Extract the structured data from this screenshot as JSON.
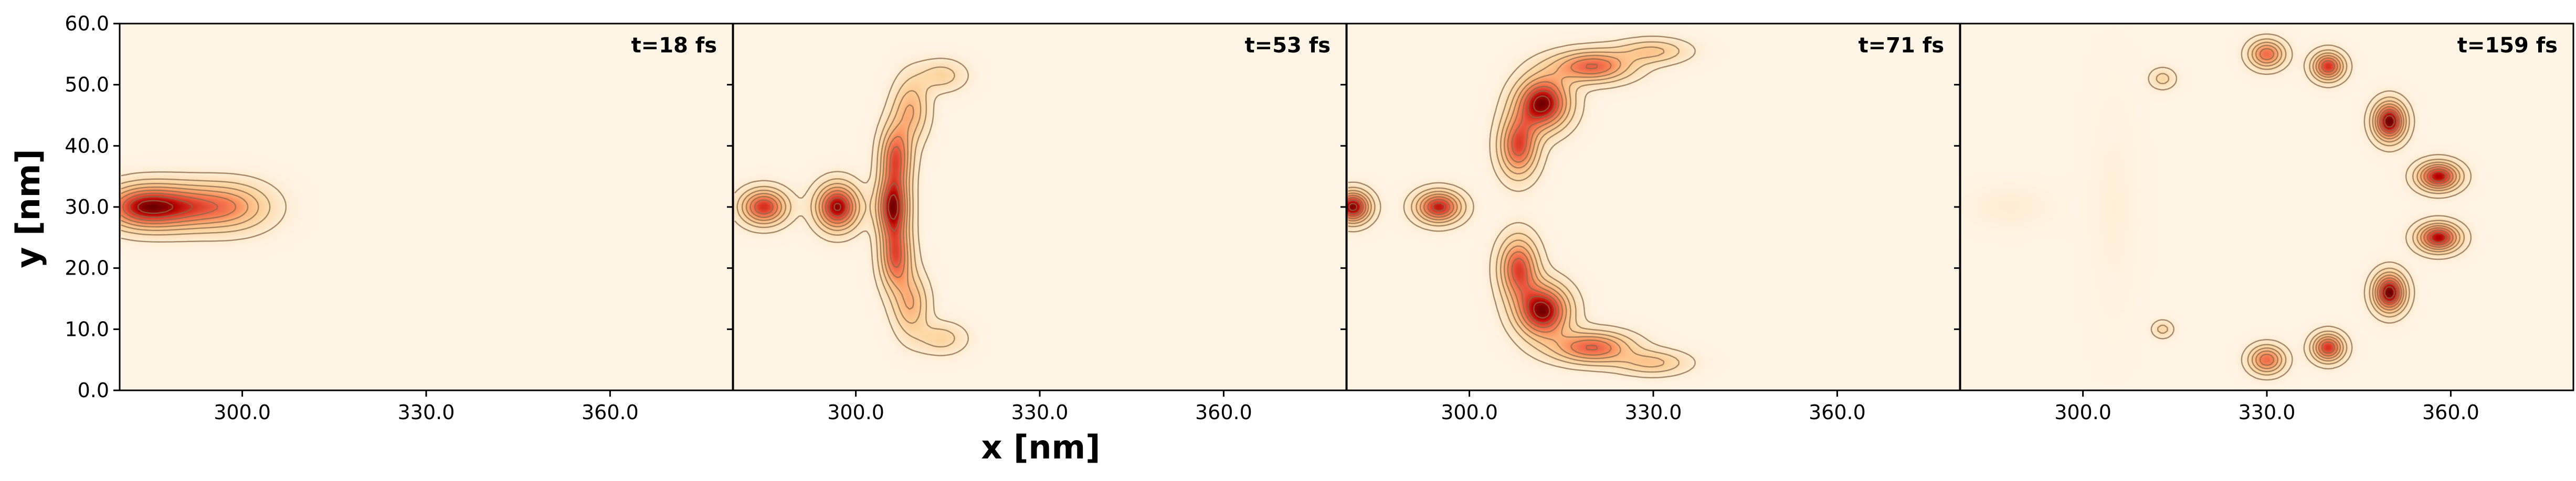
{
  "chart_data": {
    "type": "heatmap",
    "colormap": "OrRd",
    "background_color": "#fff5e6",
    "xlabel": "x [nm]",
    "ylabel": "y [nm]",
    "xlim": [
      280,
      380
    ],
    "ylim": [
      0,
      60
    ],
    "x_ticks": [
      "300.0",
      "330.0",
      "360.0"
    ],
    "x_tick_values": [
      300,
      330,
      360
    ],
    "y_ticks": [
      "0.0",
      "10.0",
      "20.0",
      "30.0",
      "40.0",
      "50.0",
      "60.0"
    ],
    "y_tick_values": [
      0,
      10,
      20,
      30,
      40,
      50,
      60
    ],
    "panels": [
      {
        "time_label": "t=18 fs",
        "blobs": [
          {
            "x": 289,
            "y": 30,
            "sx": 6.5,
            "sy": 2.6,
            "amp": 1.0
          },
          {
            "x": 283,
            "y": 30,
            "sx": 4.0,
            "sy": 2.4,
            "amp": 0.6
          },
          {
            "x": 299,
            "y": 30,
            "sx": 4.5,
            "sy": 2.8,
            "amp": 0.45
          }
        ]
      },
      {
        "time_label": "t=53 fs",
        "blobs": [
          {
            "x": 285,
            "y": 30,
            "sx": 2.6,
            "sy": 2.0,
            "amp": 0.85
          },
          {
            "x": 297,
            "y": 30,
            "sx": 2.4,
            "sy": 2.6,
            "amp": 1.0
          },
          {
            "x": 306,
            "y": 30,
            "sx": 1.8,
            "sy": 3.2,
            "amp": 0.9
          },
          {
            "x": 306.5,
            "y": 38,
            "sx": 1.8,
            "sy": 3.8,
            "amp": 0.75
          },
          {
            "x": 306.5,
            "y": 22,
            "sx": 1.8,
            "sy": 3.8,
            "amp": 0.75
          },
          {
            "x": 309,
            "y": 46,
            "sx": 2.0,
            "sy": 3.5,
            "amp": 0.45
          },
          {
            "x": 309,
            "y": 14,
            "sx": 2.0,
            "sy": 3.5,
            "amp": 0.45
          },
          {
            "x": 314,
            "y": 51.5,
            "sx": 2.8,
            "sy": 1.8,
            "amp": 0.28
          },
          {
            "x": 314,
            "y": 8.5,
            "sx": 2.8,
            "sy": 1.8,
            "amp": 0.28
          }
        ]
      },
      {
        "time_label": "t=71 fs",
        "blobs": [
          {
            "x": 281,
            "y": 30,
            "sx": 2.0,
            "sy": 1.8,
            "amp": 0.85
          },
          {
            "x": 295,
            "y": 30,
            "sx": 2.6,
            "sy": 1.8,
            "amp": 0.75
          },
          {
            "x": 308,
            "y": 40,
            "sx": 2.2,
            "sy": 3.5,
            "amp": 0.65
          },
          {
            "x": 312,
            "y": 47,
            "sx": 3.0,
            "sy": 3.0,
            "amp": 0.85
          },
          {
            "x": 320,
            "y": 53,
            "sx": 4.5,
            "sy": 1.8,
            "amp": 0.6
          },
          {
            "x": 330,
            "y": 55.5,
            "sx": 4.0,
            "sy": 1.4,
            "amp": 0.3
          },
          {
            "x": 308,
            "y": 20,
            "sx": 2.2,
            "sy": 3.5,
            "amp": 0.65
          },
          {
            "x": 312,
            "y": 13,
            "sx": 3.0,
            "sy": 3.0,
            "amp": 0.85
          },
          {
            "x": 320,
            "y": 7,
            "sx": 4.5,
            "sy": 1.8,
            "amp": 0.6
          },
          {
            "x": 330,
            "y": 4.5,
            "sx": 4.0,
            "sy": 1.4,
            "amp": 0.3
          }
        ]
      },
      {
        "time_label": "t=159 fs",
        "blobs": [
          {
            "x": 330,
            "y": 55,
            "sx": 2.0,
            "sy": 1.6,
            "amp": 0.65
          },
          {
            "x": 340,
            "y": 53,
            "sx": 1.8,
            "sy": 1.6,
            "amp": 0.8
          },
          {
            "x": 350,
            "y": 44,
            "sx": 1.8,
            "sy": 2.2,
            "amp": 1.0
          },
          {
            "x": 358,
            "y": 35,
            "sx": 2.4,
            "sy": 1.6,
            "amp": 0.9
          },
          {
            "x": 358,
            "y": 25,
            "sx": 2.4,
            "sy": 1.6,
            "amp": 0.9
          },
          {
            "x": 350,
            "y": 16,
            "sx": 1.8,
            "sy": 2.2,
            "amp": 1.0
          },
          {
            "x": 340,
            "y": 7,
            "sx": 1.8,
            "sy": 1.6,
            "amp": 0.8
          },
          {
            "x": 330,
            "y": 5,
            "sx": 2.0,
            "sy": 1.6,
            "amp": 0.65
          },
          {
            "x": 313,
            "y": 51,
            "sx": 1.5,
            "sy": 1.2,
            "amp": 0.25
          },
          {
            "x": 313,
            "y": 10,
            "sx": 1.2,
            "sy": 1.0,
            "amp": 0.25
          },
          {
            "x": 288,
            "y": 30,
            "sx": 5.0,
            "sy": 2.5,
            "amp": 0.07
          },
          {
            "x": 305,
            "y": 30,
            "sx": 3.0,
            "sy": 14,
            "amp": 0.05
          }
        ]
      }
    ]
  }
}
